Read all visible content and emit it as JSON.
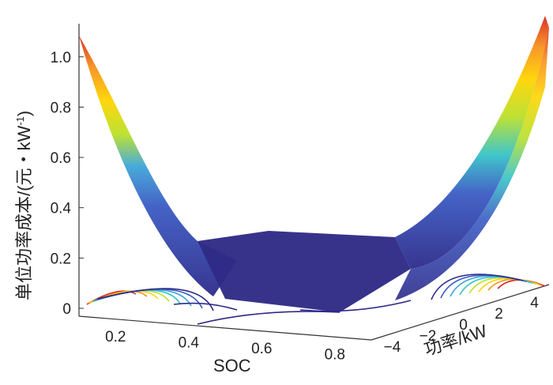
{
  "chart_data": {
    "type": "surface3d",
    "title": "",
    "ylabel": "单位功率成本/(元・kW",
    "ylabel_superscript": "-1",
    "ylabel_close": ")",
    "xlabel": "SOC",
    "zlabel": "功率/kW",
    "soc_ticks": [
      "0.2",
      "0.4",
      "0.6",
      "0.8"
    ],
    "power_ticks": [
      "−4",
      "−2",
      "0",
      "2",
      "4"
    ],
    "cost_ticks": [
      "0",
      "0.2",
      "0.4",
      "0.6",
      "0.8",
      "1.0"
    ],
    "soc_range": [
      0.1,
      0.9
    ],
    "power_range": [
      -5,
      5
    ],
    "cost_range": [
      0,
      1.1
    ],
    "surface": {
      "description_points": [
        {
          "soc": 0.1,
          "power": -5,
          "cost": 1.05
        },
        {
          "soc": 0.3,
          "power": 0,
          "cost": 0.25
        },
        {
          "soc": 0.9,
          "power": 5,
          "cost": 1.1
        }
      ],
      "floor_level": 0.25
    },
    "colormap": [
      "#2d2a8a",
      "#3b5cc4",
      "#3fa6d8",
      "#36c3c8",
      "#b9e02a",
      "#ffd400",
      "#f7901e",
      "#d7261e"
    ],
    "projected_contours": true
  }
}
